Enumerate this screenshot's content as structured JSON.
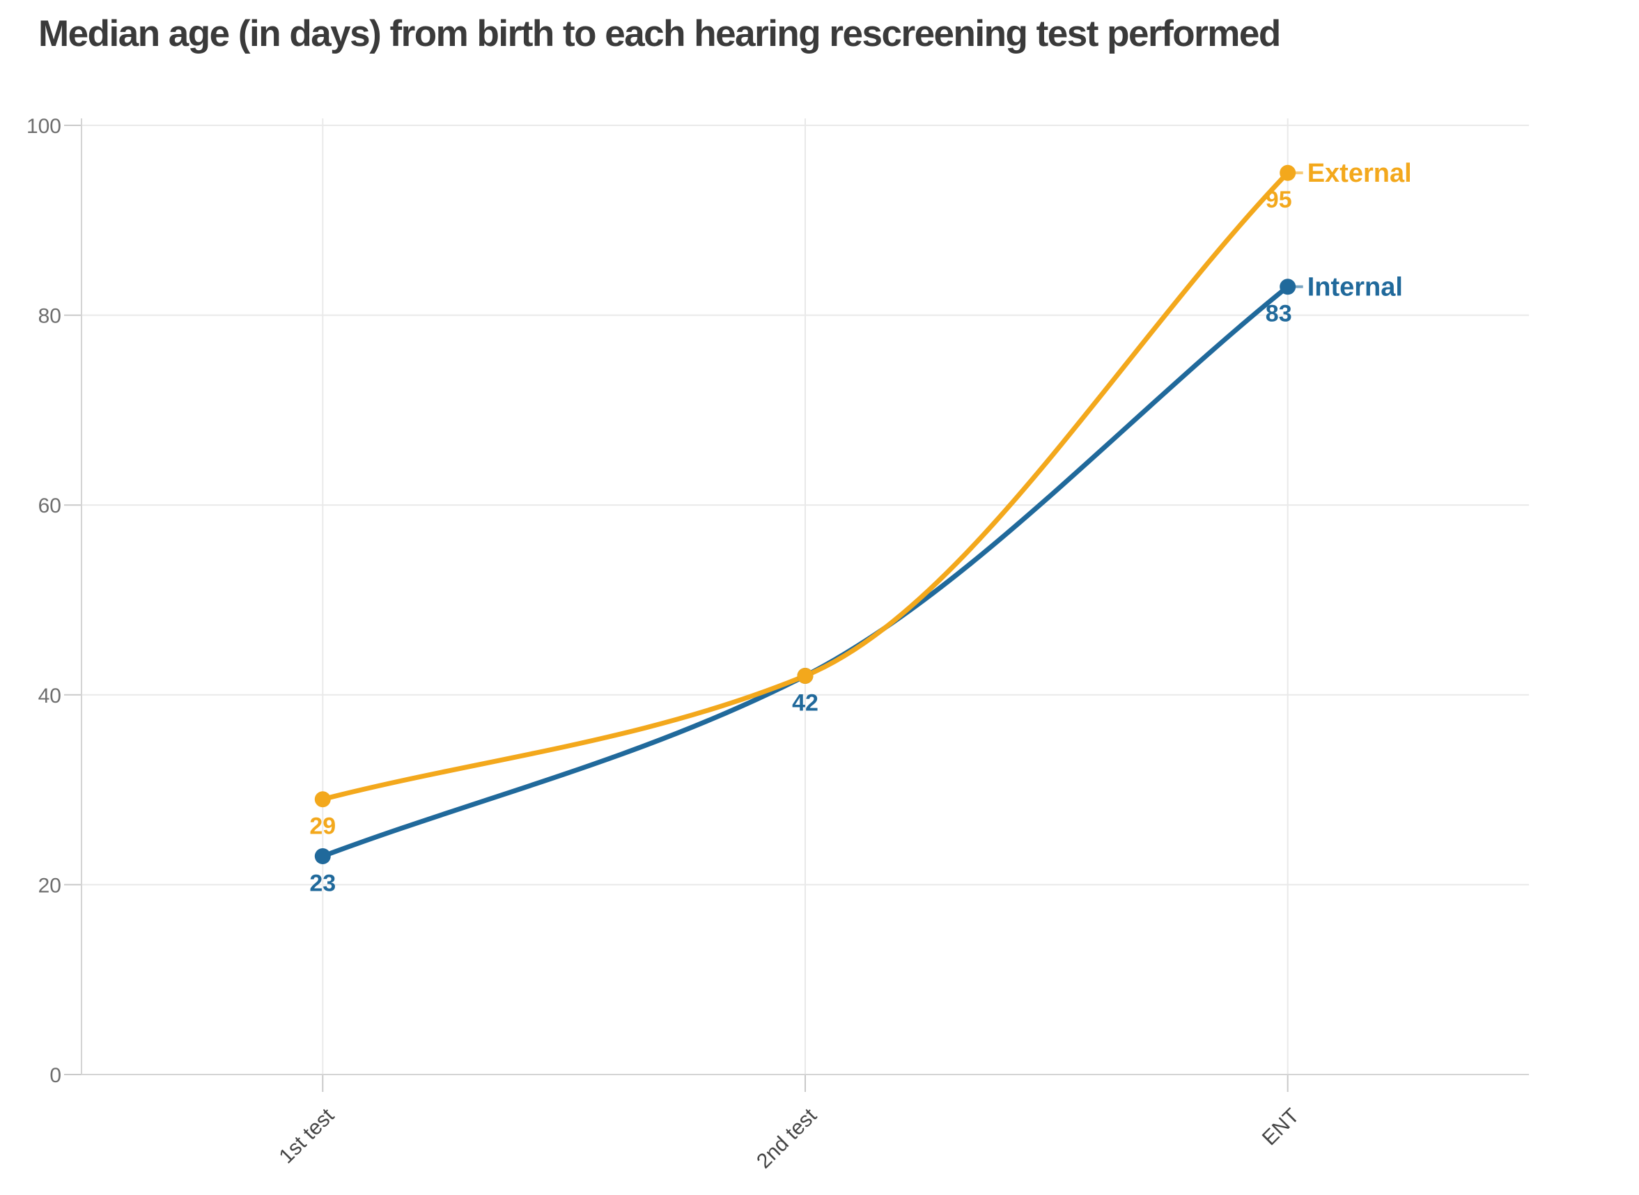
{
  "title": "Median age (in days) from birth to each hearing rescreening test performed",
  "chart_data": {
    "type": "line",
    "title": "Median age (in days) from birth to each hearing rescreening test performed",
    "categories": [
      "1st test",
      "2nd test",
      "ENT"
    ],
    "series": [
      {
        "name": "External",
        "color": "#F3A81C",
        "values": [
          29,
          42,
          95
        ],
        "value_labels": [
          "29",
          null,
          "95"
        ]
      },
      {
        "name": "Internal",
        "color": "#20699B",
        "values": [
          23,
          42,
          83
        ],
        "value_labels": [
          "23",
          "42",
          "83"
        ]
      }
    ],
    "xlabel": "",
    "ylabel": "",
    "ylim": [
      0,
      100
    ],
    "yticks": [
      0,
      20,
      40,
      60,
      80,
      100
    ],
    "grid": "horizontal and vertical gridlines, light gray",
    "curve": "monotone",
    "legend_position": "direct labels at right end of each line"
  },
  "colors": {
    "external": "#F3A81C",
    "internal": "#20699B",
    "title_text": "#3a3a3a",
    "axis_label_text": "#6e6e6e",
    "x_label_text": "#454545",
    "gridline": "#e9e9e9",
    "axis_line": "#d4d4d4",
    "tick": "#c9c9c9",
    "background": "#ffffff"
  }
}
